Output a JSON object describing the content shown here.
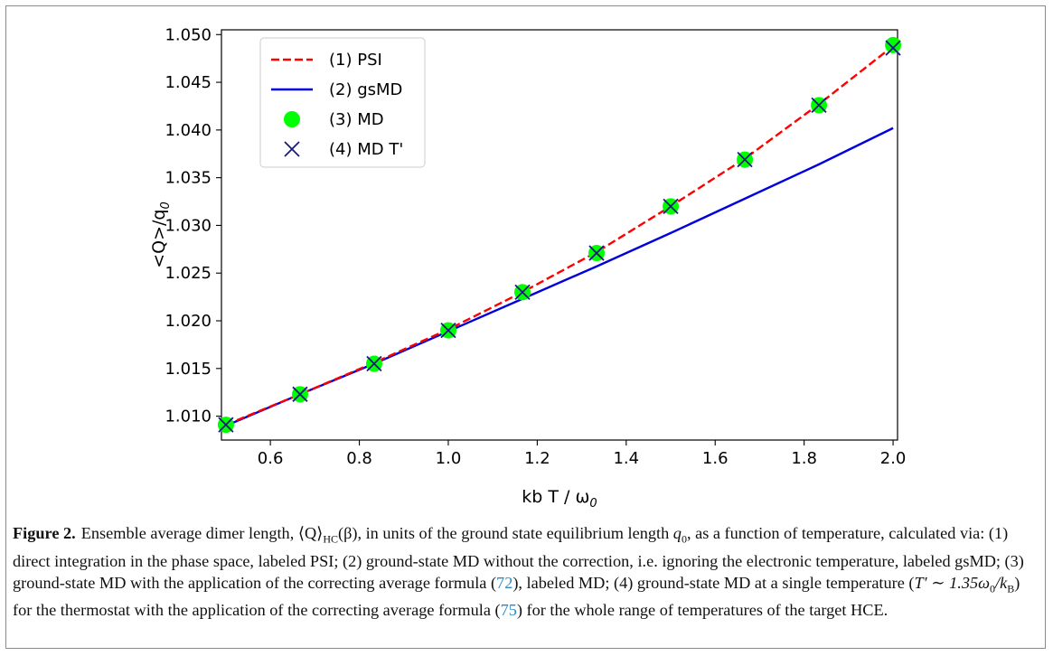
{
  "chart_data": {
    "type": "line",
    "xlabel": "kb T / ω",
    "xlabel_sub": "0",
    "ylabel": "<Q>/q",
    "ylabel_sub": "0",
    "xlim": [
      0.49,
      2.01
    ],
    "ylim": [
      1.0075,
      1.0505
    ],
    "xticks": [
      0.6,
      0.8,
      1.0,
      1.2,
      1.4,
      1.6,
      1.8,
      2.0
    ],
    "xtick_labels": [
      "0.6",
      "0.8",
      "1.0",
      "1.2",
      "1.4",
      "1.6",
      "1.8",
      "2.0"
    ],
    "yticks": [
      1.01,
      1.015,
      1.02,
      1.025,
      1.03,
      1.035,
      1.04,
      1.045,
      1.05
    ],
    "ytick_labels": [
      "1.010",
      "1.015",
      "1.020",
      "1.025",
      "1.030",
      "1.035",
      "1.040",
      "1.045",
      "1.050"
    ],
    "legend_position": "top-left",
    "grid": false,
    "series": [
      {
        "name": "(1) PSI",
        "style": "dashed-line",
        "color": "#ff0000",
        "x": [
          0.5,
          0.6667,
          0.8333,
          1.0,
          1.1667,
          1.3333,
          1.5,
          1.6667,
          1.8333,
          2.0
        ],
        "y": [
          1.0091,
          1.0123,
          1.0156,
          1.0191,
          1.023,
          1.0272,
          1.032,
          1.037,
          1.0427,
          1.0488
        ]
      },
      {
        "name": "(2) gsMD",
        "style": "solid-line",
        "color": "#0000dd",
        "x": [
          0.5,
          0.6667,
          0.8333,
          1.0,
          1.1667,
          1.3333,
          1.5,
          1.6667,
          1.8333,
          2.0
        ],
        "y": [
          1.009,
          1.0123,
          1.0155,
          1.0189,
          1.0223,
          1.0257,
          1.0292,
          1.0328,
          1.0364,
          1.0402
        ]
      },
      {
        "name": "(3) MD",
        "style": "circle-marker",
        "color": "#00ff00",
        "x": [
          0.5,
          0.6667,
          0.8333,
          1.0,
          1.1667,
          1.3333,
          1.5,
          1.6667,
          1.8333,
          2.0
        ],
        "y": [
          1.0091,
          1.0123,
          1.0155,
          1.019,
          1.023,
          1.0271,
          1.032,
          1.0369,
          1.0426,
          1.0489
        ]
      },
      {
        "name": "(4) MD T'",
        "style": "x-marker",
        "color": "#1a1a80",
        "x": [
          0.5,
          0.6667,
          0.8333,
          1.0,
          1.1667,
          1.3333,
          1.5,
          1.6667,
          1.8333,
          2.0
        ],
        "y": [
          1.0091,
          1.0123,
          1.0155,
          1.019,
          1.023,
          1.0271,
          1.032,
          1.0369,
          1.0426,
          1.0486
        ]
      }
    ]
  },
  "caption": {
    "label": "Figure 2.",
    "part1": "Ensemble average dimer length, ⟨Q⟩",
    "sub_hc": "HC",
    "part2": "(β), in units of the ground state equilibrium length ",
    "q": "q",
    "q_sub": "0",
    "part3": ", as a function of temperature, calculated via: (1) direct integration in the phase space, labeled PSI; (2) ground-state MD without the correction, i.e. ignoring the electronic temperature, labeled gsMD; (3) ground-state MD with the application of the correcting average formula (",
    "ref1": "72",
    "part4": "), labeled MD; (4) ground-state MD at a single temperature (",
    "tprime": "T′ ∼ 1.35ω",
    "tprime_sub": "0",
    "kb": "/k",
    "kb_sub": "B",
    "part5": ") for the thermostat with the application of the correcting average formula (",
    "ref2": "75",
    "part6": ") for the whole range of temperatures of the target HCE."
  }
}
